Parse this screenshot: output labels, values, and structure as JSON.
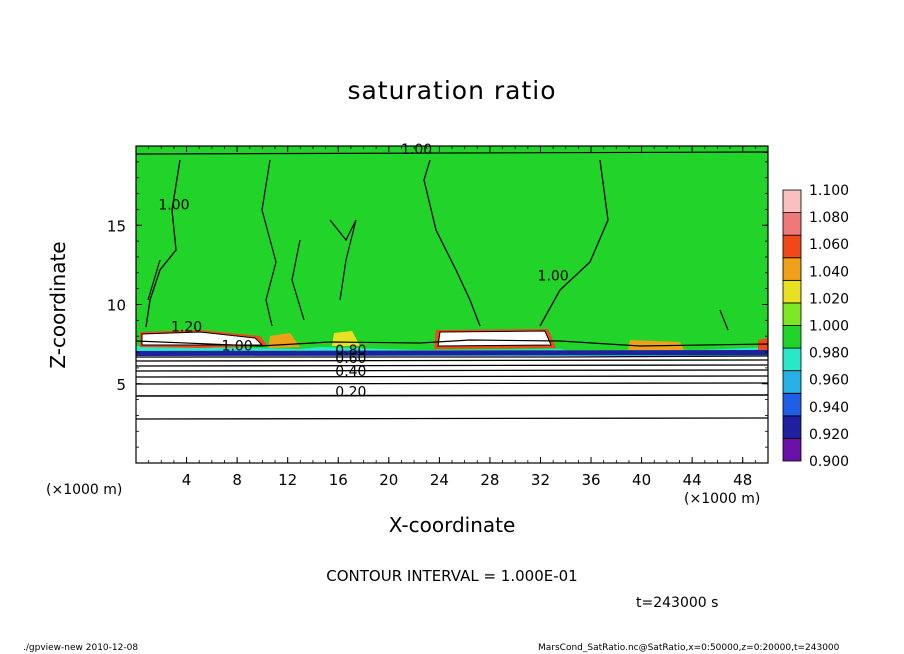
{
  "chart_data": {
    "type": "heatmap",
    "title": "saturation ratio",
    "xlabel": "X-coordinate",
    "ylabel": "Z-coordinate",
    "x_unit_label": "(×1000 m)",
    "xlim": [
      0,
      50
    ],
    "ylim": [
      0,
      20
    ],
    "x_ticks": [
      4,
      8,
      12,
      16,
      20,
      24,
      28,
      32,
      36,
      40,
      44,
      48
    ],
    "y_ticks": [
      5,
      10,
      15
    ],
    "colorbar": {
      "levels": [
        "0.900",
        "0.920",
        "0.940",
        "0.960",
        "0.980",
        "1.000",
        "1.020",
        "1.040",
        "1.060",
        "1.080",
        "1.100"
      ],
      "colors": [
        "#6a0fa8",
        "#1f1fa0",
        "#1f5fe8",
        "#26b0e8",
        "#28e8c8",
        "#22d42a",
        "#7ce823",
        "#e8e020",
        "#f0a018",
        "#f04818",
        "#f07878",
        "#f8c0c0"
      ]
    },
    "contour_labels": [
      {
        "text": "1.00",
        "x": 22.2,
        "z": 19.5
      },
      {
        "text": "1.00",
        "x": 3.0,
        "z": 16.0
      },
      {
        "text": "1.00",
        "x": 33.0,
        "z": 11.5
      },
      {
        "text": "1.20",
        "x": 4.0,
        "z": 8.3
      },
      {
        "text": "1.00",
        "x": 8.0,
        "z": 7.1
      },
      {
        "text": "0.80",
        "x": 17.0,
        "z": 6.8
      },
      {
        "text": "0.60",
        "x": 17.0,
        "z": 6.3
      },
      {
        "text": "0.40",
        "x": 17.0,
        "z": 5.5
      },
      {
        "text": "0.20",
        "x": 17.0,
        "z": 4.2
      }
    ],
    "contour_interval_text": "CONTOUR INTERVAL = 1.000E-01",
    "time_text": "t=243000 s"
  },
  "footer": {
    "left": "./gpview-new  2010-12-08",
    "right": "MarsCond_SatRatio.nc@SatRatio,x=0:50000,z=0:20000,t=243000"
  }
}
